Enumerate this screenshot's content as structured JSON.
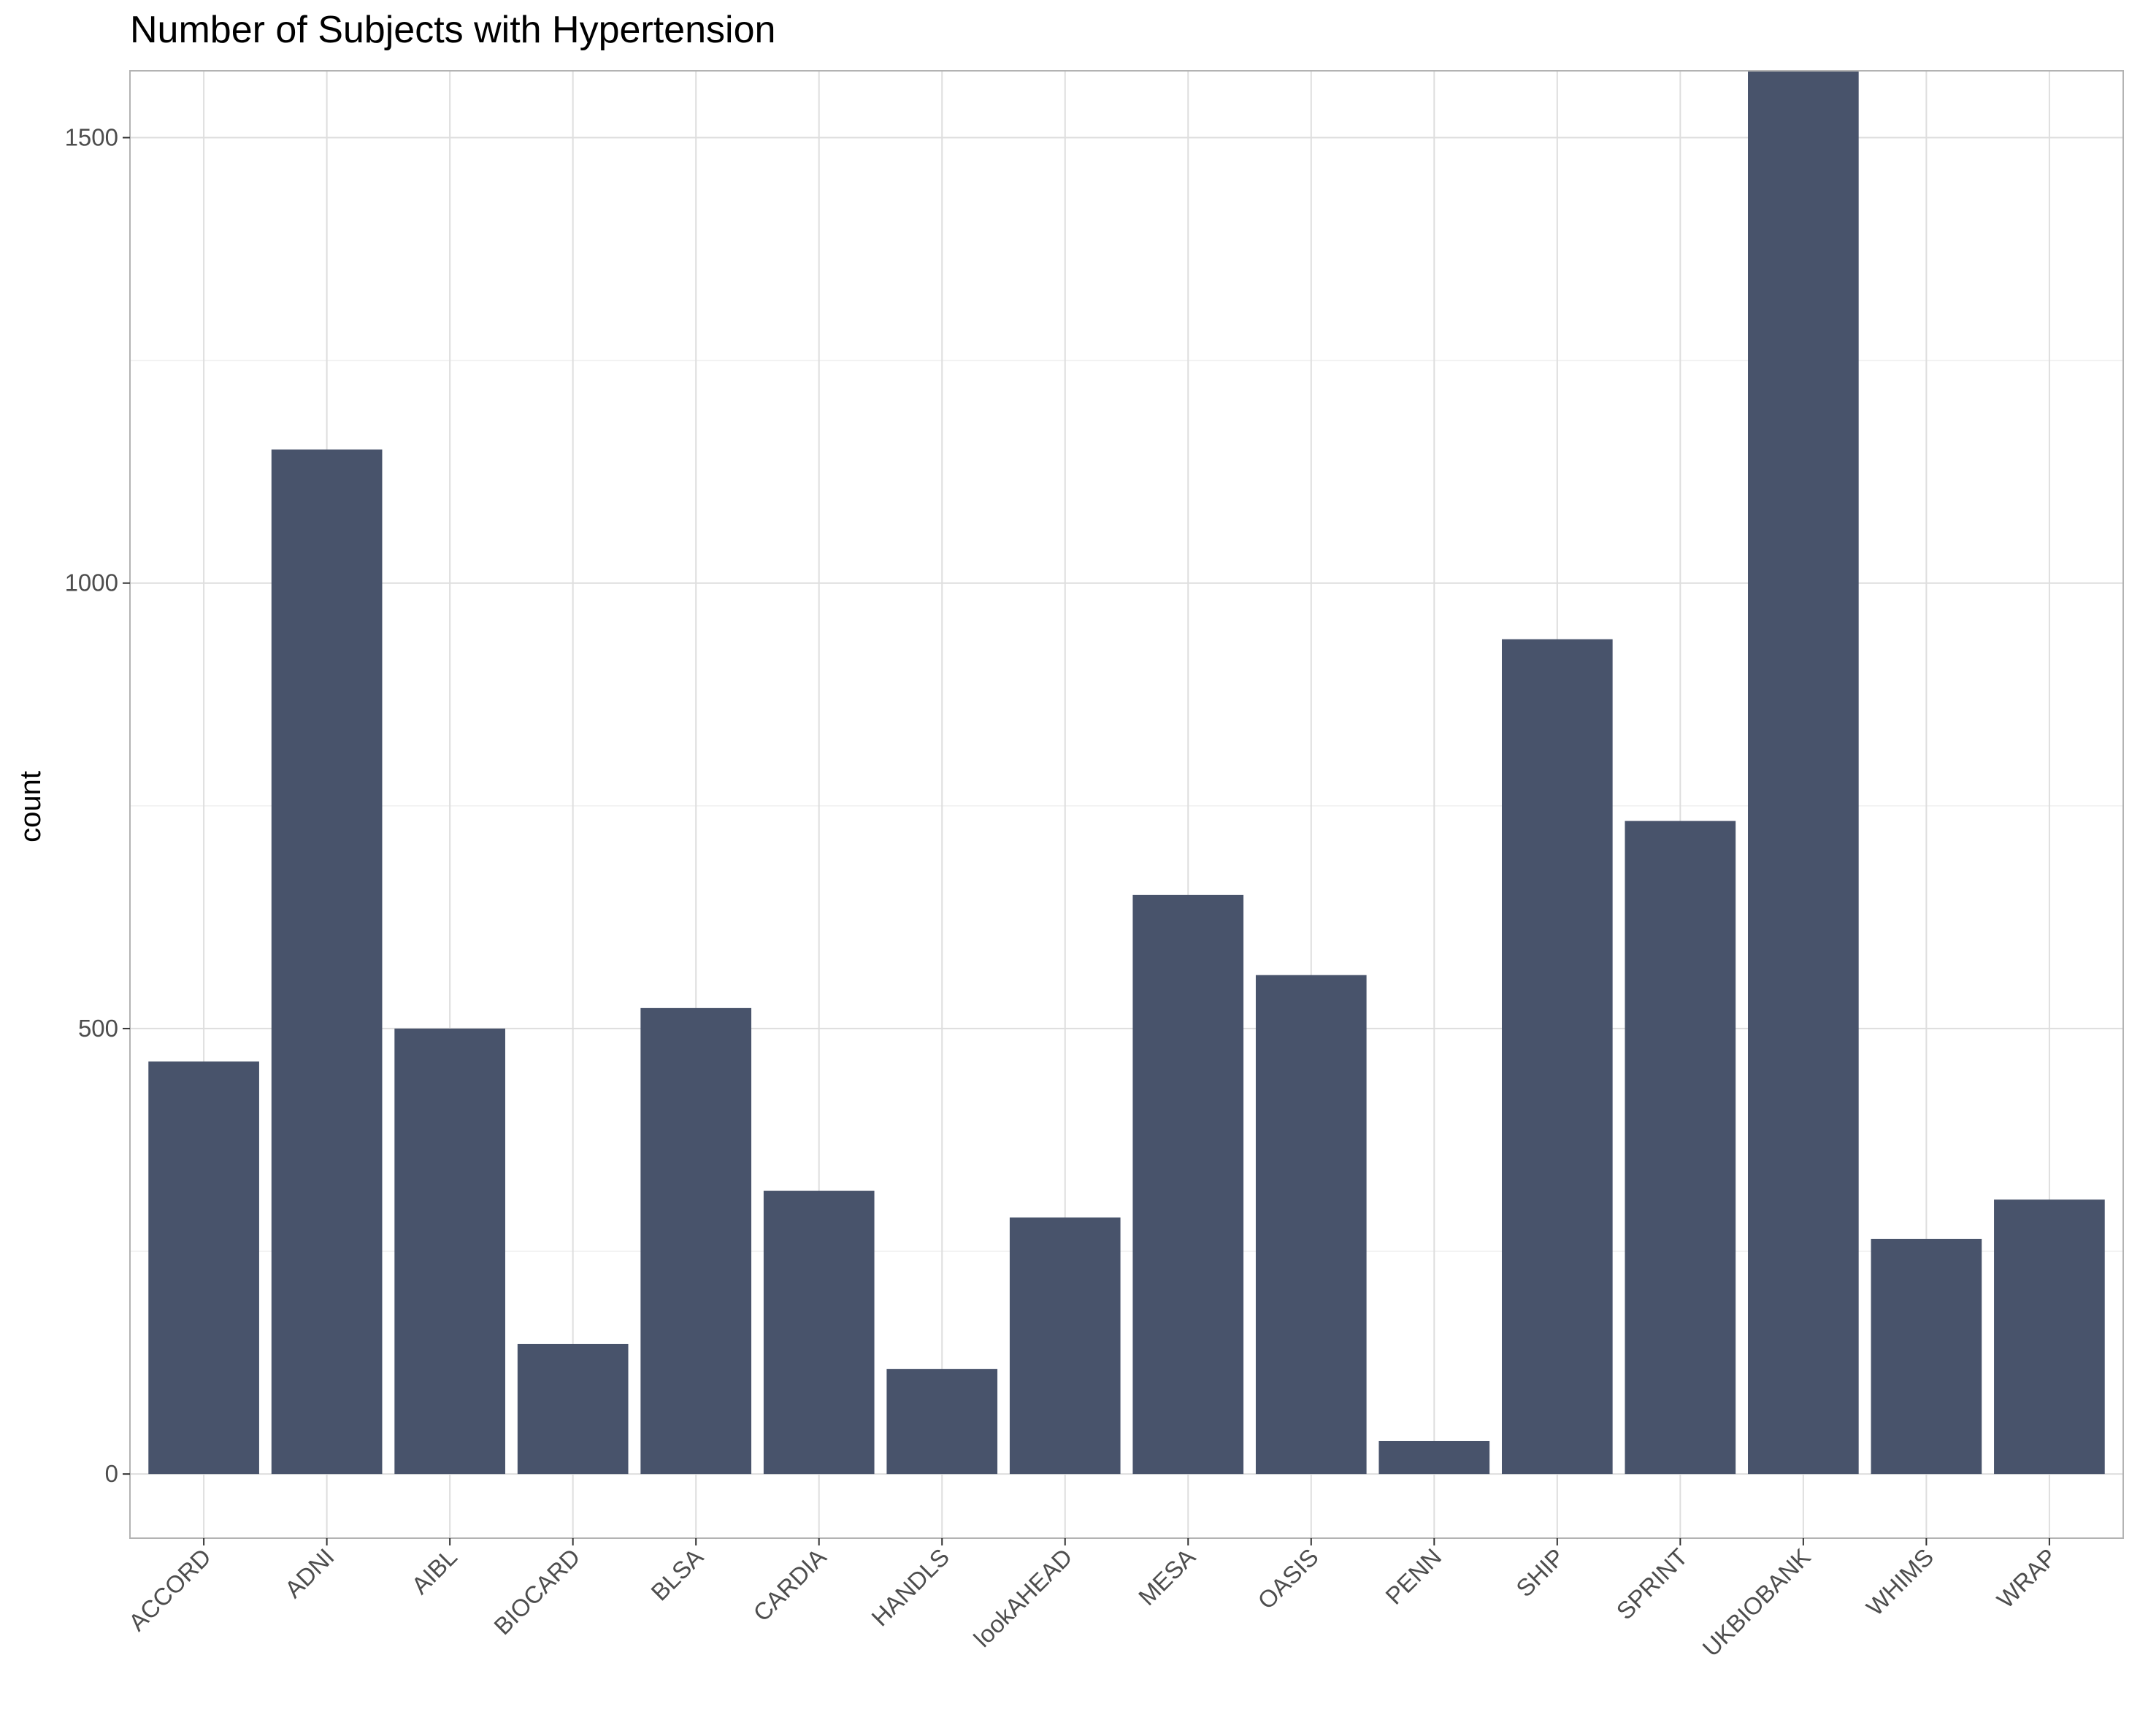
{
  "chart_data": {
    "type": "bar",
    "title": "Number of Subjects with Hypertension",
    "xlabel": "",
    "ylabel": "count",
    "categories": [
      "ACCORD",
      "ADNI",
      "AIBL",
      "BIOCARD",
      "BLSA",
      "CARDIA",
      "HANDLS",
      "lookAHEAD",
      "MESA",
      "OASIS",
      "PENN",
      "SHIP",
      "SPRINT",
      "UKBIOBANK",
      "WHIMS",
      "WRAP"
    ],
    "values": [
      463,
      1150,
      500,
      146,
      523,
      318,
      118,
      288,
      650,
      560,
      37,
      937,
      733,
      1575,
      264,
      308
    ],
    "ylim": [
      -72,
      1575
    ],
    "yticks": [
      0,
      500,
      1000,
      1500
    ],
    "yticks_minor": [
      250,
      750,
      1250
    ],
    "grid": true,
    "bar_color": "#48536b"
  }
}
